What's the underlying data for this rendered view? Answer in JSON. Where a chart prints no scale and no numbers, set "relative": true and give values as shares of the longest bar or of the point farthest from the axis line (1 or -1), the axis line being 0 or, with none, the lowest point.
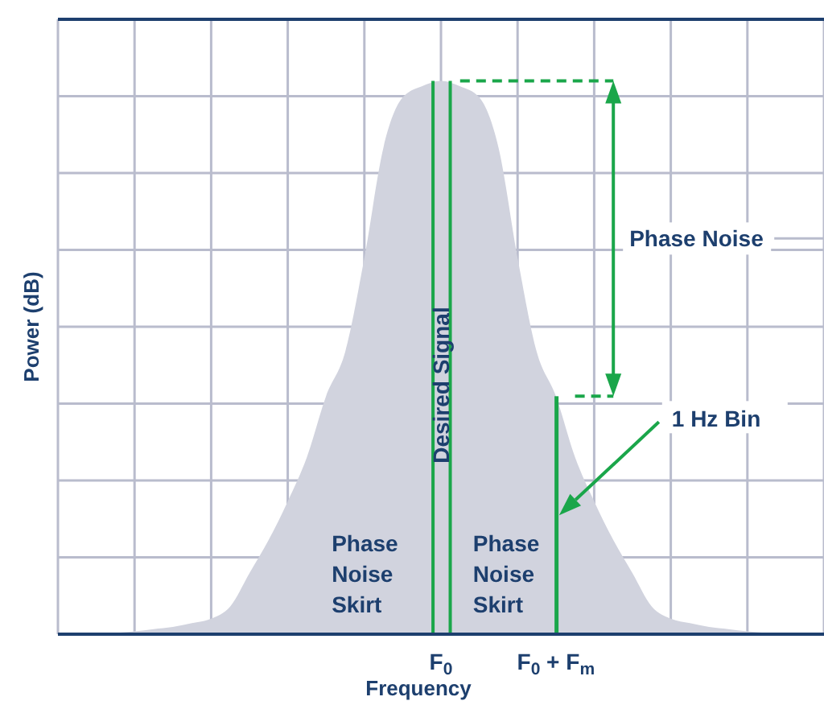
{
  "chart_data": {
    "type": "area",
    "relative": true,
    "xlabel": "Frequency",
    "ylabel": "Power (dB)",
    "grid": true,
    "legend": false,
    "categories": [
      null,
      null,
      null,
      null,
      null,
      null,
      null,
      null,
      null,
      null,
      null,
      null,
      null,
      null,
      null,
      null,
      null,
      null,
      null,
      null,
      "F$_{0}$",
      null,
      null,
      null,
      null,
      null,
      "F$_{0}$ + F$_{m}$",
      null,
      null,
      null,
      null,
      null,
      null,
      null,
      null,
      null,
      null,
      null,
      null,
      null,
      null
    ],
    "annotations": [
      "Phase Noise",
      "1 Hz Bin",
      "Phase Noise Skirt",
      "Phase Noise Skirt"
    ],
    "series": [
      {
        "color": "#d1d3de",
        "values": [
          0,
          0,
          0,
          0.002,
          0.005,
          0.009,
          0.013,
          0.02,
          0.028,
          0.05,
          0.11,
          0.17,
          0.24,
          0.32,
          0.43,
          0.51,
          0.68,
          0.88,
          0.97,
          0.99,
          1,
          0.99,
          0.97,
          0.88,
          0.68,
          0.51,
          0.43,
          0.32,
          0.24,
          0.17,
          0.11,
          0.05,
          0.028,
          0.02,
          0.013,
          0.009,
          0.005,
          0.002,
          0,
          0,
          0
        ]
      },
      {
        "type": "bar",
        "name": "Desired Signal",
        "color": "#1aa64a",
        "values": [
          null,
          null,
          null,
          null,
          null,
          null,
          null,
          null,
          null,
          null,
          null,
          null,
          null,
          null,
          null,
          null,
          null,
          null,
          null,
          null,
          1,
          null,
          null,
          null,
          null,
          null,
          null,
          null,
          null,
          null,
          null,
          null,
          null,
          null,
          null,
          null,
          null,
          null,
          null,
          null,
          null
        ]
      },
      {
        "type": "bar",
        "color": "#1aa64a",
        "values": [
          null,
          null,
          null,
          null,
          null,
          null,
          null,
          null,
          null,
          null,
          null,
          null,
          null,
          null,
          null,
          null,
          null,
          null,
          null,
          null,
          null,
          null,
          null,
          null,
          null,
          null,
          0.43,
          null,
          null,
          null,
          null,
          null,
          null,
          null,
          null,
          null,
          null,
          null,
          null,
          null,
          null
        ]
      },
      {
        "type": "line",
        "line_style": "dashed",
        "color": "#1aa64a",
        "values": [
          null,
          null,
          null,
          null,
          null,
          null,
          null,
          null,
          null,
          null,
          null,
          null,
          null,
          null,
          null,
          null,
          null,
          null,
          null,
          null,
          null,
          1,
          1,
          1,
          1,
          1,
          1,
          1,
          1,
          1,
          null,
          null,
          null,
          null,
          null,
          null,
          null,
          null,
          null,
          null,
          null
        ]
      },
      {
        "type": "line",
        "line_style": "dashed",
        "color": "#1aa64a",
        "values": [
          null,
          null,
          null,
          null,
          null,
          null,
          null,
          null,
          null,
          null,
          null,
          null,
          null,
          null,
          null,
          null,
          null,
          null,
          null,
          null,
          null,
          null,
          null,
          null,
          null,
          null,
          null,
          0.43,
          0.43,
          0.43,
          null,
          null,
          null,
          null,
          null,
          null,
          null,
          null,
          null,
          null,
          null
        ]
      }
    ]
  }
}
